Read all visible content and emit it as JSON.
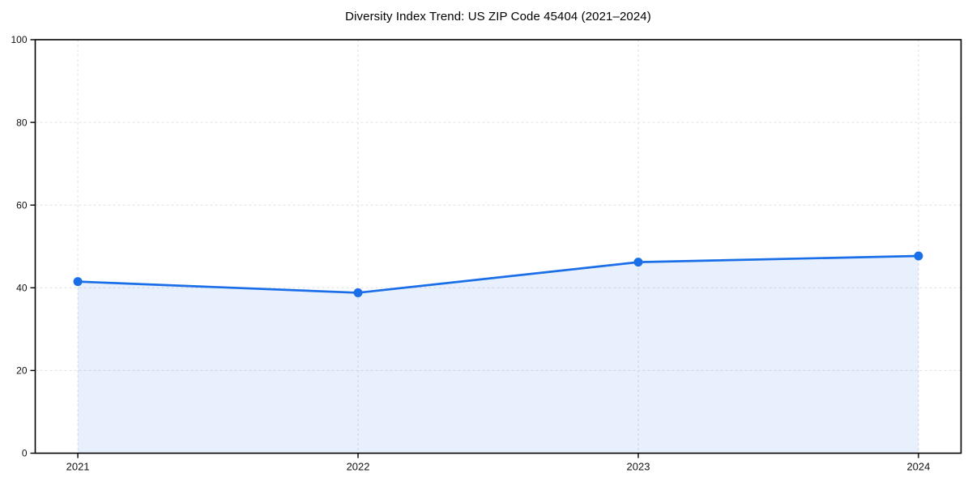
{
  "chart_data": {
    "type": "area",
    "title": "Diversity Index Trend: US ZIP Code 45404 (2021–2024)",
    "x": [
      "2021",
      "2022",
      "2023",
      "2024"
    ],
    "series": [
      {
        "name": "Diversity Index",
        "values": [
          41.5,
          38.8,
          46.2,
          47.7
        ]
      }
    ],
    "xlabel": "",
    "ylabel": "",
    "ylim": [
      0,
      100
    ],
    "yticks": [
      0,
      20,
      40,
      60,
      80,
      100
    ],
    "grid": true,
    "grid_style": "dashed",
    "legend": "none",
    "marker": "circle",
    "colors": {
      "line": "#1a6ee8",
      "fill": "rgba(26, 110, 232, 0.10)",
      "grid": "#e3e3e3",
      "axis": "#000000",
      "tick_text": "#111111",
      "background": "#ffffff"
    }
  }
}
